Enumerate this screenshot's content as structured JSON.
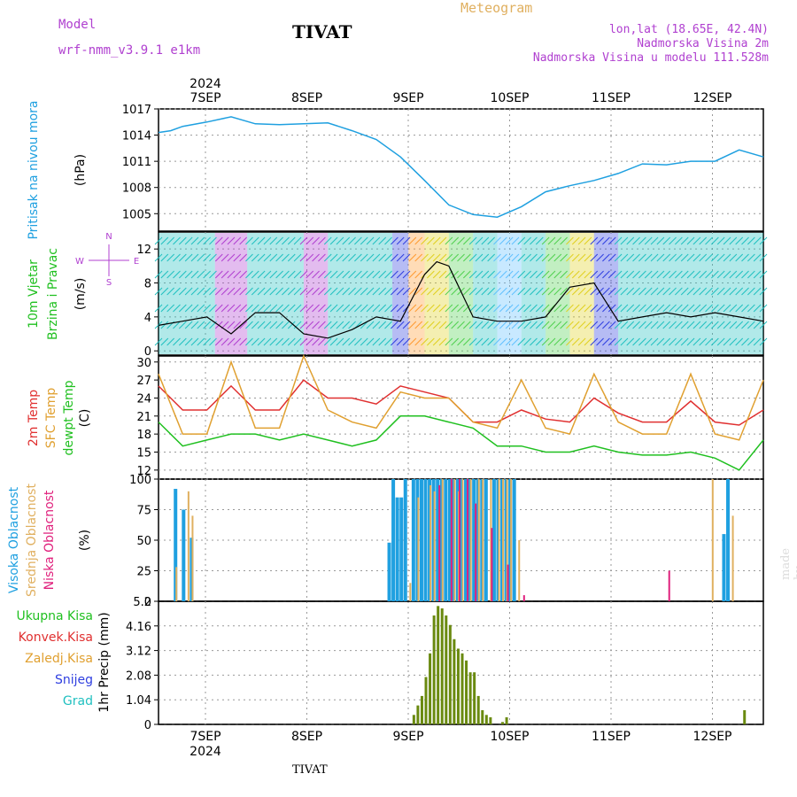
{
  "header": {
    "model_label": "Model",
    "model_name": "wrf-nmm_v3.9.1  e1km",
    "title": "TIVAT",
    "meteogram": "Meteogram",
    "lonlat": "lon,lat (18.65E, 42.4N)",
    "altitude": "Nadmorska Visina 2m",
    "model_altitude": "Nadmorska Visina u modelu 111.528m",
    "watermark": "made by Angel",
    "footer": "TIVAT",
    "year": "2024"
  },
  "colors": {
    "purple": "#b040d0",
    "gold": "#e0b060",
    "pressure": "#1fa0e0",
    "green": "#20c020",
    "red": "#e03030",
    "orange": "#e0a030",
    "magenta": "#e0207c",
    "blue": "#2f3fe0",
    "cyan": "#20c0c0"
  },
  "chart_data": [
    {
      "type": "line",
      "ylabel": [
        "Pritisak na nivou mora",
        "(hPa)"
      ],
      "ylim": [
        1003,
        1017
      ],
      "yticks": [
        1005,
        1008,
        1011,
        1014,
        1017
      ],
      "x_ticks": [
        "7SEP",
        "8SEP",
        "9SEP",
        "10SEP",
        "11SEP",
        "12SEP"
      ],
      "series": [
        {
          "name": "",
          "color": "#1fa0e0",
          "x": [
            0,
            3,
            6,
            12,
            18,
            24,
            30,
            36,
            42,
            48,
            54,
            60,
            66,
            72,
            78,
            84,
            90,
            96,
            102,
            108,
            114,
            120,
            126,
            132,
            138,
            144,
            150
          ],
          "values": [
            14.3,
            14.5,
            15.0,
            15.5,
            16.1,
            15.3,
            15.2,
            15.3,
            15.4,
            14.5,
            13.5,
            11.5,
            8.8,
            6.0,
            4.9,
            4.6,
            5.8,
            7.5,
            8.2,
            8.8,
            9.6,
            10.7,
            10.6,
            11.0,
            11.0,
            12.3,
            11.5
          ]
        }
      ]
    },
    {
      "type": "line",
      "ylabel": [
        "10m Vjetar",
        "Brzina i Pravac",
        "(m/s)"
      ],
      "compass": [
        "N",
        "E",
        "S",
        "W"
      ],
      "ylim": [
        -0.5,
        14
      ],
      "yticks": [
        0,
        4,
        8,
        12
      ],
      "series": [
        {
          "name": "",
          "color": "#000000",
          "x": [
            0,
            6,
            12,
            18,
            24,
            30,
            36,
            42,
            48,
            54,
            60,
            66,
            69,
            72,
            78,
            84,
            90,
            96,
            102,
            108,
            114,
            120,
            126,
            132,
            138,
            144,
            150
          ],
          "values": [
            3.0,
            3.5,
            4.0,
            2.0,
            4.5,
            4.5,
            2.0,
            1.5,
            2.5,
            4.0,
            3.5,
            9.0,
            10.5,
            10.0,
            4.0,
            3.5,
            3.5,
            4.0,
            7.5,
            8.0,
            3.5,
            4.0,
            4.5,
            4.0,
            4.5,
            4.0,
            3.5
          ]
        }
      ]
    },
    {
      "type": "line",
      "ylabel": [
        "2m Temp",
        "SFC Temp",
        "dewpt Temp",
        "(C)"
      ],
      "ylim": [
        10.5,
        31
      ],
      "yticks": [
        12,
        15,
        18,
        21,
        24,
        27,
        30
      ],
      "series": [
        {
          "name": "2m Temp",
          "color": "#e03030",
          "x": [
            0,
            6,
            12,
            18,
            24,
            30,
            36,
            42,
            48,
            54,
            60,
            66,
            72,
            78,
            84,
            90,
            96,
            102,
            108,
            114,
            120,
            126,
            132,
            138,
            144,
            150
          ],
          "values": [
            26,
            22,
            22,
            26,
            22,
            22,
            27,
            24,
            24,
            23,
            26,
            25,
            24,
            20,
            20,
            22,
            20.5,
            20,
            24,
            21.5,
            20,
            20,
            23.5,
            20,
            19.5,
            22
          ]
        },
        {
          "name": "SFC Temp",
          "color": "#e0a030",
          "x": [
            0,
            6,
            12,
            18,
            24,
            30,
            36,
            42,
            48,
            54,
            60,
            66,
            72,
            78,
            84,
            90,
            96,
            102,
            108,
            114,
            120,
            126,
            132,
            138,
            144,
            150
          ],
          "values": [
            28,
            18,
            18,
            30,
            19,
            19,
            31,
            22,
            20,
            19,
            25,
            24,
            24,
            20,
            19,
            27,
            19,
            18,
            28,
            20,
            18,
            18,
            28,
            18,
            17,
            27
          ]
        },
        {
          "name": "dewpt Temp",
          "color": "#20c020",
          "x": [
            0,
            6,
            12,
            18,
            24,
            30,
            36,
            42,
            48,
            54,
            60,
            66,
            72,
            78,
            84,
            90,
            96,
            102,
            108,
            114,
            120,
            126,
            132,
            138,
            144,
            150
          ],
          "values": [
            20,
            16,
            17,
            18,
            18,
            17,
            18,
            17,
            16,
            17,
            21,
            21,
            20,
            19,
            16,
            16,
            15,
            15,
            16,
            15,
            14.5,
            14.5,
            15,
            14,
            12,
            17
          ]
        }
      ]
    },
    {
      "type": "bar",
      "ylabel": [
        "Visoka Oblacnost",
        "Srednja Oblacnost",
        "Niska Oblacnost",
        "(%)"
      ],
      "ylim": [
        0,
        100
      ],
      "yticks": [
        0,
        25,
        50,
        75,
        100
      ],
      "series": [
        {
          "name": "Visoka Oblacnost",
          "color": "#1fa0e0",
          "bars": [
            [
              4,
              92
            ],
            [
              6,
              75
            ],
            [
              8,
              52
            ],
            [
              57,
              48
            ],
            [
              58,
              100
            ],
            [
              59,
              85
            ],
            [
              60,
              85
            ],
            [
              61,
              100
            ],
            [
              63,
              100
            ],
            [
              64,
              100
            ],
            [
              65,
              100
            ],
            [
              66,
              100
            ],
            [
              67,
              100
            ],
            [
              68,
              100
            ],
            [
              69,
              100
            ],
            [
              70,
              100
            ],
            [
              71,
              100
            ],
            [
              72,
              100
            ],
            [
              73,
              100
            ],
            [
              74,
              100
            ],
            [
              75,
              100
            ],
            [
              76,
              100
            ],
            [
              77,
              100
            ],
            [
              78,
              100
            ],
            [
              79,
              100
            ],
            [
              80,
              100
            ],
            [
              81,
              100
            ],
            [
              83,
              100
            ],
            [
              84,
              100
            ],
            [
              85,
              100
            ],
            [
              86,
              100
            ],
            [
              87,
              100
            ],
            [
              88,
              100
            ],
            [
              140,
              55
            ],
            [
              141,
              100
            ]
          ]
        },
        {
          "name": "Srednja Oblacnost",
          "color": "#e0b060",
          "bars": [
            [
              4,
              28
            ],
            [
              7,
              90
            ],
            [
              8,
              70
            ],
            [
              62,
              15
            ],
            [
              64,
              85
            ],
            [
              67,
              95
            ],
            [
              68,
              90
            ],
            [
              70,
              100
            ],
            [
              73,
              100
            ],
            [
              74,
              90
            ],
            [
              75,
              100
            ],
            [
              77,
              100
            ],
            [
              79,
              100
            ],
            [
              80,
              100
            ],
            [
              82,
              100
            ],
            [
              84,
              100
            ],
            [
              85,
              100
            ],
            [
              86,
              100
            ],
            [
              87,
              100
            ],
            [
              89,
              50
            ],
            [
              137,
              100
            ],
            [
              142,
              70
            ]
          ]
        },
        {
          "name": "Niska Oblacnost",
          "color": "#e0207c",
          "bars": [
            [
              69,
              95
            ],
            [
              72,
              100
            ],
            [
              74,
              100
            ],
            [
              76,
              100
            ],
            [
              78,
              80
            ],
            [
              82,
              60
            ],
            [
              86,
              30
            ],
            [
              90,
              5
            ],
            [
              126,
              25
            ]
          ]
        }
      ]
    },
    {
      "type": "bar",
      "ylabel": [
        "1hr Precip (mm)"
      ],
      "legend": [
        "Ukupna Kisa",
        "Konvek.Kisa",
        "Zaledj.Kisa",
        "Snijeg",
        "Grad"
      ],
      "ylim": [
        0,
        5.2
      ],
      "yticks": [
        "0",
        "1.04",
        "2.08",
        "3.12",
        "4.16",
        "5.2"
      ],
      "x_ticks": [
        "7SEP",
        "8SEP",
        "9SEP",
        "10SEP",
        "11SEP",
        "12SEP"
      ],
      "series": [
        {
          "name": "Ukupna Kisa",
          "color": "#6a8a10",
          "bars": [
            [
              63,
              0.4
            ],
            [
              64,
              0.8
            ],
            [
              65,
              1.2
            ],
            [
              66,
              2.0
            ],
            [
              67,
              3.0
            ],
            [
              68,
              4.6
            ],
            [
              69,
              5.0
            ],
            [
              70,
              4.9
            ],
            [
              71,
              4.6
            ],
            [
              72,
              4.2
            ],
            [
              73,
              3.6
            ],
            [
              74,
              3.2
            ],
            [
              75,
              3.0
            ],
            [
              76,
              2.7
            ],
            [
              77,
              2.2
            ],
            [
              78,
              2.2
            ],
            [
              79,
              1.2
            ],
            [
              80,
              0.6
            ],
            [
              81,
              0.4
            ],
            [
              82,
              0.3
            ],
            [
              85,
              0.1
            ],
            [
              86,
              0.3
            ],
            [
              145,
              0.6
            ]
          ]
        }
      ]
    }
  ]
}
